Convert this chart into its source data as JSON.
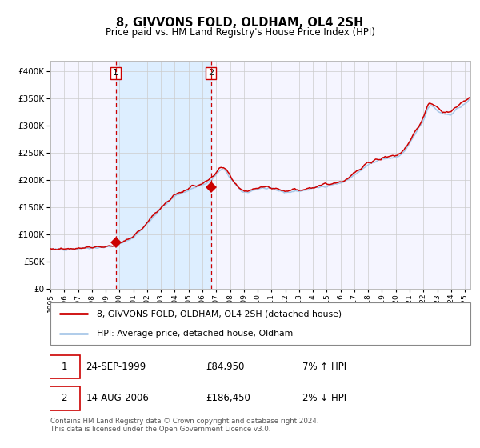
{
  "title": "8, GIVVONS FOLD, OLDHAM, OL4 2SH",
  "subtitle": "Price paid vs. HM Land Registry's House Price Index (HPI)",
  "legend_line1": "8, GIVVONS FOLD, OLDHAM, OL4 2SH (detached house)",
  "legend_line2": "HPI: Average price, detached house, Oldham",
  "annotation1_date": "24-SEP-1999",
  "annotation1_price": "£84,950",
  "annotation1_hpi": "7% ↑ HPI",
  "annotation2_date": "14-AUG-2006",
  "annotation2_price": "£186,450",
  "annotation2_hpi": "2% ↓ HPI",
  "footer": "Contains HM Land Registry data © Crown copyright and database right 2024.\nThis data is licensed under the Open Government Licence v3.0.",
  "hpi_color": "#a8c8e8",
  "price_color": "#cc0000",
  "marker_color": "#cc0000",
  "shade_color": "#ddeeff",
  "vline_color": "#cc0000",
  "grid_color": "#cccccc",
  "bg_color": "#ffffff",
  "plot_bg_color": "#f5f5ff",
  "ylim": [
    0,
    420000
  ],
  "xlim_left": 1995.0,
  "xlim_right": 2025.4,
  "sale1_x": 1999.73,
  "sale1_y": 84950,
  "sale2_x": 2006.62,
  "sale2_y": 186450,
  "shade_x1": 1999.73,
  "shade_x2": 2006.62,
  "yticks": [
    0,
    50000,
    100000,
    150000,
    200000,
    250000,
    300000,
    350000,
    400000
  ],
  "xtick_years": [
    1995,
    1996,
    1997,
    1998,
    1999,
    2000,
    2001,
    2002,
    2003,
    2004,
    2005,
    2006,
    2007,
    2008,
    2009,
    2010,
    2011,
    2012,
    2013,
    2014,
    2015,
    2016,
    2017,
    2018,
    2019,
    2020,
    2021,
    2022,
    2023,
    2024,
    2025
  ]
}
